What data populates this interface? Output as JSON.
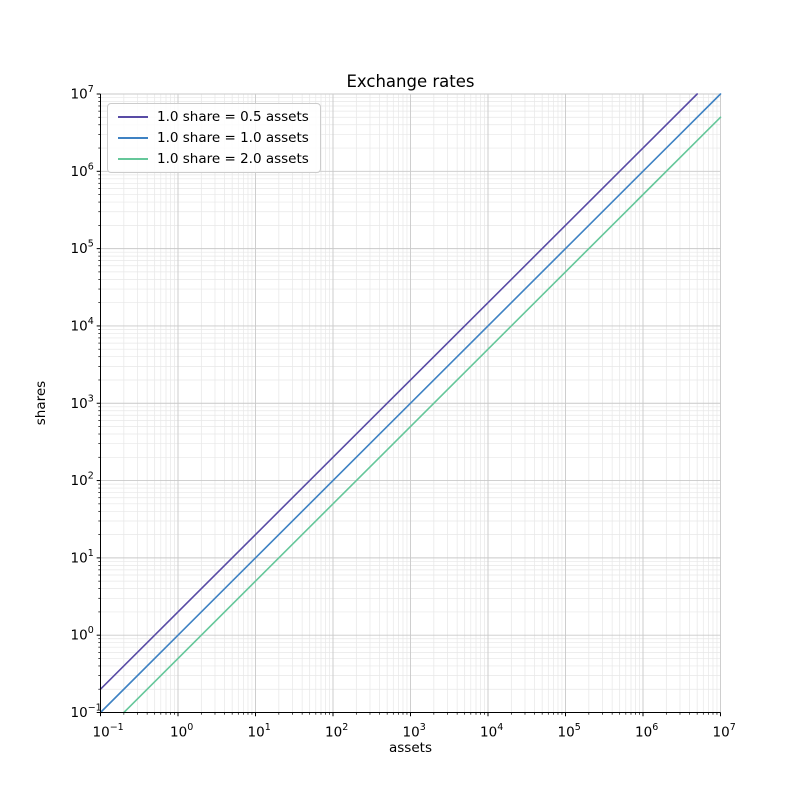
{
  "chart_data": {
    "type": "line",
    "title": "Exchange rates",
    "xlabel": "assets",
    "ylabel": "shares",
    "xscale": "log",
    "yscale": "log",
    "xlim": [
      0.1,
      10000000
    ],
    "ylim": [
      0.1,
      10000000
    ],
    "x_tick_exponents": [
      -1,
      0,
      1,
      2,
      3,
      4,
      5,
      6,
      7
    ],
    "y_tick_exponents": [
      -1,
      0,
      1,
      2,
      3,
      4,
      5,
      6,
      7
    ],
    "grid": {
      "major": true,
      "minor": true,
      "major_color": "#c9c9c9",
      "minor_color": "#e7e7e7"
    },
    "legend_position": "upper left",
    "series": [
      {
        "name": "1.0 share = 0.5 assets",
        "assets_per_share": 0.5,
        "relation": "shares = assets / 0.5",
        "color": "#584ba5",
        "endpoints": {
          "x": [
            0.1,
            5000000
          ],
          "y": [
            0.2,
            10000000
          ]
        }
      },
      {
        "name": "1.0 share = 1.0 assets",
        "assets_per_share": 1.0,
        "relation": "shares = assets / 1.0",
        "color": "#3e82c3",
        "endpoints": {
          "x": [
            0.1,
            10000000
          ],
          "y": [
            0.1,
            10000000
          ]
        }
      },
      {
        "name": "1.0 share = 2.0 assets",
        "assets_per_share": 2.0,
        "relation": "shares = assets / 2.0",
        "color": "#65c79a",
        "endpoints": {
          "x": [
            0.2,
            10000000
          ],
          "y": [
            0.1,
            5000000
          ]
        }
      }
    ]
  }
}
